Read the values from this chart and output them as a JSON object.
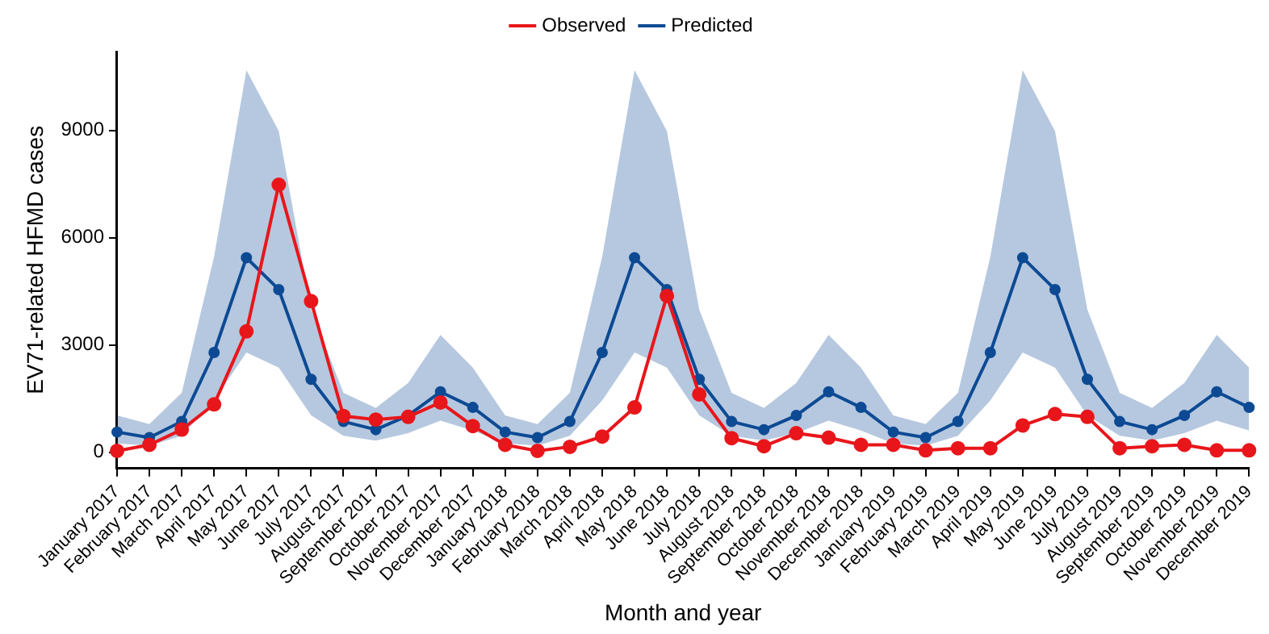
{
  "chart_data": {
    "type": "line",
    "xlabel": "Month and year",
    "ylabel": "EV71-related HFMD cases",
    "categories": [
      "January 2017",
      "February 2017",
      "March 2017",
      "April 2017",
      "May 2017",
      "June 2017",
      "July 2017",
      "August 2017",
      "September 2017",
      "October 2017",
      "November 2017",
      "December 2017",
      "January 2018",
      "February 2018",
      "March 2018",
      "April 2018",
      "May 2018",
      "June 2018",
      "July 2018",
      "August 2018",
      "September 2018",
      "October 2018",
      "November 2018",
      "December 2018",
      "January 2019",
      "February 2019",
      "March 2019",
      "April 2019",
      "May 2019",
      "June 2019",
      "July 2019",
      "August 2019",
      "September 2019",
      "October 2019",
      "November 2019",
      "December 2019"
    ],
    "series": [
      {
        "name": "Observed",
        "color": "#e8161b",
        "values": [
          40,
          210,
          635,
          1340,
          3380,
          7480,
          4225,
          1015,
          915,
          990,
          1395,
          735,
          210,
          40,
          155,
          440,
          1255,
          4370,
          1620,
          395,
          170,
          535,
          410,
          210,
          210,
          55,
          115,
          115,
          750,
          1070,
          990,
          115,
          170,
          210,
          55,
          55
        ]
      },
      {
        "name": "Predicted",
        "color": "#0d4a94",
        "values": [
          566,
          410,
          862,
          2790,
          5440,
          4550,
          2040,
          860,
          634,
          1030,
          1690,
          1255,
          566,
          410,
          862,
          2790,
          5440,
          4550,
          2040,
          860,
          634,
          1030,
          1690,
          1255,
          566,
          410,
          862,
          2790,
          5440,
          4550,
          2040,
          860,
          634,
          1030,
          1690,
          1255
        ],
        "lower": [
          250,
          185,
          465,
          1450,
          2790,
          2370,
          1030,
          465,
          325,
          535,
          885,
          610,
          250,
          185,
          465,
          1450,
          2790,
          2370,
          1030,
          465,
          325,
          535,
          885,
          610,
          250,
          185,
          465,
          1450,
          2790,
          2370,
          1030,
          465,
          325,
          535,
          885,
          610
        ],
        "upper": [
          1030,
          790,
          1665,
          5470,
          10680,
          8980,
          3990,
          1665,
          1240,
          1940,
          3280,
          2370,
          1030,
          790,
          1665,
          5470,
          10680,
          8980,
          3990,
          1665,
          1240,
          1940,
          3280,
          2370,
          1030,
          790,
          1665,
          5470,
          10680,
          8980,
          3990,
          1665,
          1240,
          1940,
          3280,
          2370
        ]
      }
    ],
    "ylim": [
      -450,
      11200
    ],
    "yticks": [
      0,
      3000,
      6000,
      9000
    ],
    "grid": false,
    "legend": "top",
    "marker": "circle",
    "line_style": "solid"
  }
}
